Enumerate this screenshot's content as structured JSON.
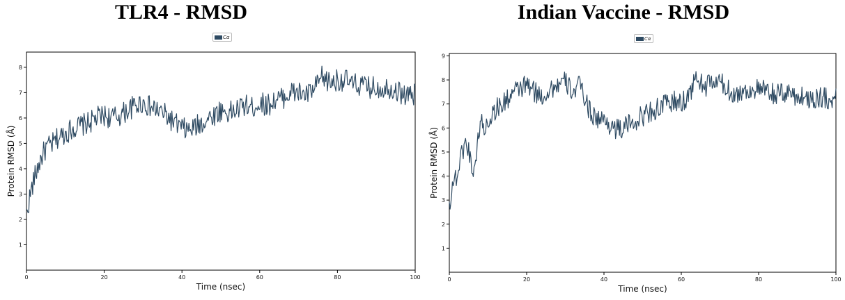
{
  "chart_data": [
    {
      "type": "line",
      "title": "TLR4 - RMSD",
      "xlabel": "Time (nsec)",
      "ylabel": "Protein RMSD (Å)",
      "xlim": [
        0,
        100
      ],
      "ylim": [
        0,
        8.6
      ],
      "xticks": [
        0,
        20,
        40,
        60,
        80,
        100
      ],
      "yticks": [
        1,
        2,
        3,
        4,
        5,
        6,
        7,
        8
      ],
      "grid": false,
      "legend_position": "top-center",
      "series": [
        {
          "name": "Cα",
          "color": "#2e4a62",
          "x": [
            0,
            1,
            2,
            3,
            4,
            5,
            6,
            7,
            8,
            9,
            10,
            12,
            14,
            16,
            18,
            20,
            22,
            24,
            26,
            28,
            30,
            32,
            34,
            36,
            38,
            40,
            42,
            44,
            46,
            48,
            50,
            52,
            54,
            56,
            58,
            60,
            62,
            64,
            66,
            68,
            70,
            72,
            74,
            76,
            78,
            80,
            82,
            84,
            86,
            88,
            90,
            92,
            94,
            96,
            98,
            100
          ],
          "y": [
            2.2,
            3.0,
            3.6,
            4.1,
            4.5,
            4.8,
            4.9,
            5.0,
            5.2,
            5.3,
            5.4,
            5.6,
            5.7,
            5.8,
            6.0,
            6.1,
            6.0,
            6.1,
            6.3,
            6.5,
            6.6,
            6.4,
            6.3,
            6.1,
            5.8,
            5.6,
            5.5,
            5.7,
            5.9,
            6.1,
            6.3,
            6.2,
            6.3,
            6.5,
            6.4,
            6.6,
            6.5,
            6.7,
            6.8,
            7.0,
            7.0,
            6.9,
            7.1,
            7.6,
            7.4,
            7.5,
            7.5,
            7.3,
            7.3,
            7.2,
            7.2,
            7.2,
            7.2,
            7.0,
            6.9,
            6.9
          ]
        }
      ]
    },
    {
      "type": "line",
      "title": "Indian Vaccine - RMSD",
      "xlabel": "Time (nsec)",
      "ylabel": "Protein RMSD (Å)",
      "xlim": [
        0,
        100
      ],
      "ylim": [
        0,
        9.1
      ],
      "xticks": [
        0,
        20,
        40,
        60,
        80,
        100
      ],
      "yticks": [
        1,
        2,
        3,
        4,
        5,
        6,
        7,
        8,
        9
      ],
      "grid": false,
      "legend_position": "top-center",
      "series": [
        {
          "name": "Cα",
          "color": "#2e4a62",
          "x": [
            0,
            1,
            2,
            3,
            4,
            5,
            6,
            7,
            8,
            9,
            10,
            12,
            14,
            16,
            18,
            20,
            22,
            24,
            26,
            28,
            30,
            32,
            34,
            36,
            38,
            40,
            42,
            44,
            46,
            48,
            50,
            52,
            54,
            56,
            58,
            60,
            62,
            64,
            66,
            68,
            70,
            72,
            74,
            76,
            78,
            80,
            82,
            84,
            86,
            88,
            90,
            92,
            94,
            96,
            98,
            100
          ],
          "y": [
            2.8,
            3.8,
            4.0,
            4.8,
            5.4,
            5.1,
            4.2,
            4.8,
            6.4,
            5.9,
            6.3,
            6.8,
            7.0,
            7.4,
            7.6,
            7.8,
            7.5,
            7.3,
            7.6,
            7.8,
            7.9,
            7.5,
            7.8,
            6.8,
            6.4,
            6.3,
            6.1,
            5.9,
            6.1,
            6.3,
            6.5,
            6.7,
            6.8,
            7.0,
            7.1,
            7.0,
            7.4,
            8.1,
            7.7,
            7.9,
            7.9,
            7.6,
            7.4,
            7.5,
            7.6,
            7.6,
            7.5,
            7.4,
            7.4,
            7.5,
            7.3,
            7.3,
            7.2,
            7.3,
            7.2,
            7.2
          ]
        }
      ]
    }
  ]
}
